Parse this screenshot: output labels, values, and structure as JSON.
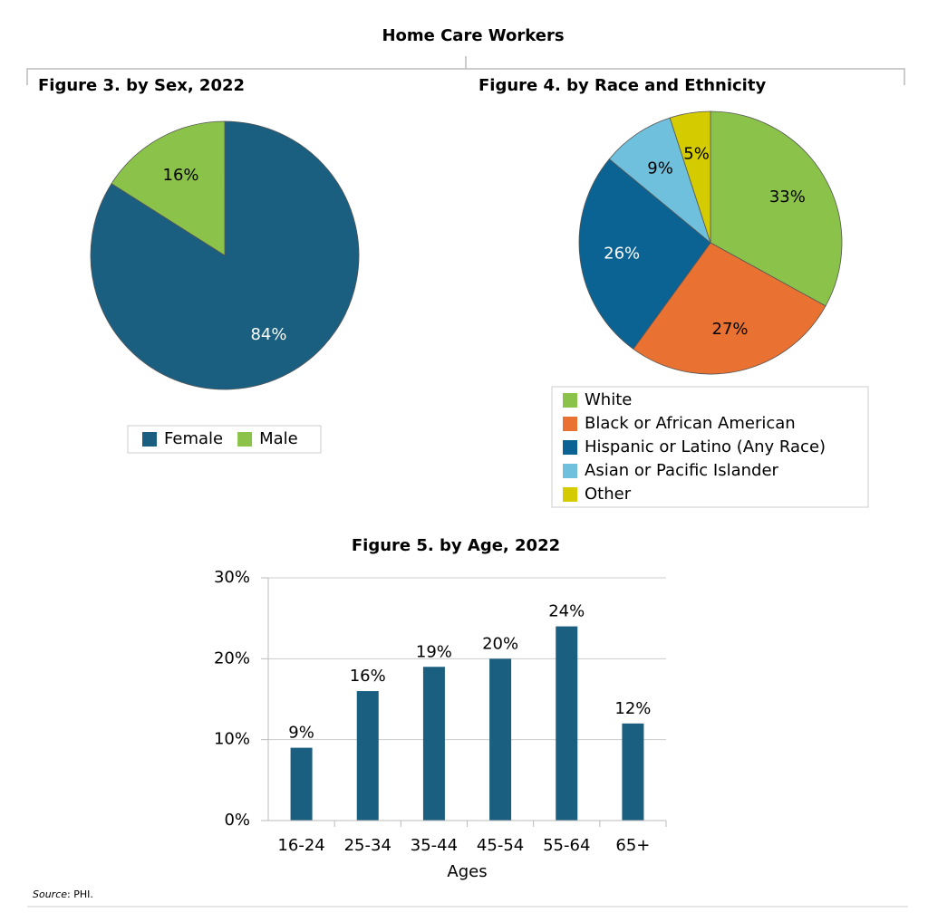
{
  "title": "Home Care Workers",
  "source_label": "Source",
  "source_text": ": PHI.",
  "chart_data": [
    {
      "type": "pie",
      "title": "Figure 3. by Sex, 2022",
      "categories": [
        "Female",
        "Male"
      ],
      "values": [
        84,
        16
      ],
      "value_labels": [
        "84%",
        "16%"
      ],
      "colors": [
        "#1a5e80",
        "#8bc34a"
      ],
      "label_colors": [
        "#ffffff",
        "#000000"
      ],
      "legend": "bottom"
    },
    {
      "type": "pie",
      "title": "Figure 4. by Race and Ethnicity",
      "categories": [
        "White",
        "Black or African American",
        "Hispanic or Latino (Any Race)",
        "Asian or Pacific Islander",
        "Other"
      ],
      "values": [
        33,
        27,
        26,
        9,
        5
      ],
      "value_labels": [
        "33%",
        "27%",
        "26%",
        "9%",
        "5%"
      ],
      "colors": [
        "#8bc34a",
        "#e97132",
        "#0b6394",
        "#6fc0dd",
        "#d4cc00"
      ],
      "label_colors": [
        "#000000",
        "#000000",
        "#ffffff",
        "#000000",
        "#000000"
      ],
      "legend": "bottom"
    },
    {
      "type": "bar",
      "title": "Figure 5. by Age, 2022",
      "x_label": "Ages",
      "categories": [
        "16-24",
        "25-34",
        "35-44",
        "45-54",
        "55-64",
        "65+"
      ],
      "values": [
        9,
        16,
        19,
        20,
        24,
        12
      ],
      "value_labels": [
        "9%",
        "16%",
        "19%",
        "20%",
        "24%",
        "12%"
      ],
      "color": "#1a5e80",
      "ylim": [
        0,
        30
      ],
      "yticks": [
        {
          "value": 0,
          "label": "0%"
        },
        {
          "value": 10,
          "label": "10%"
        },
        {
          "value": 20,
          "label": "20%"
        },
        {
          "value": 30,
          "label": "30%"
        }
      ],
      "grid": true
    }
  ]
}
